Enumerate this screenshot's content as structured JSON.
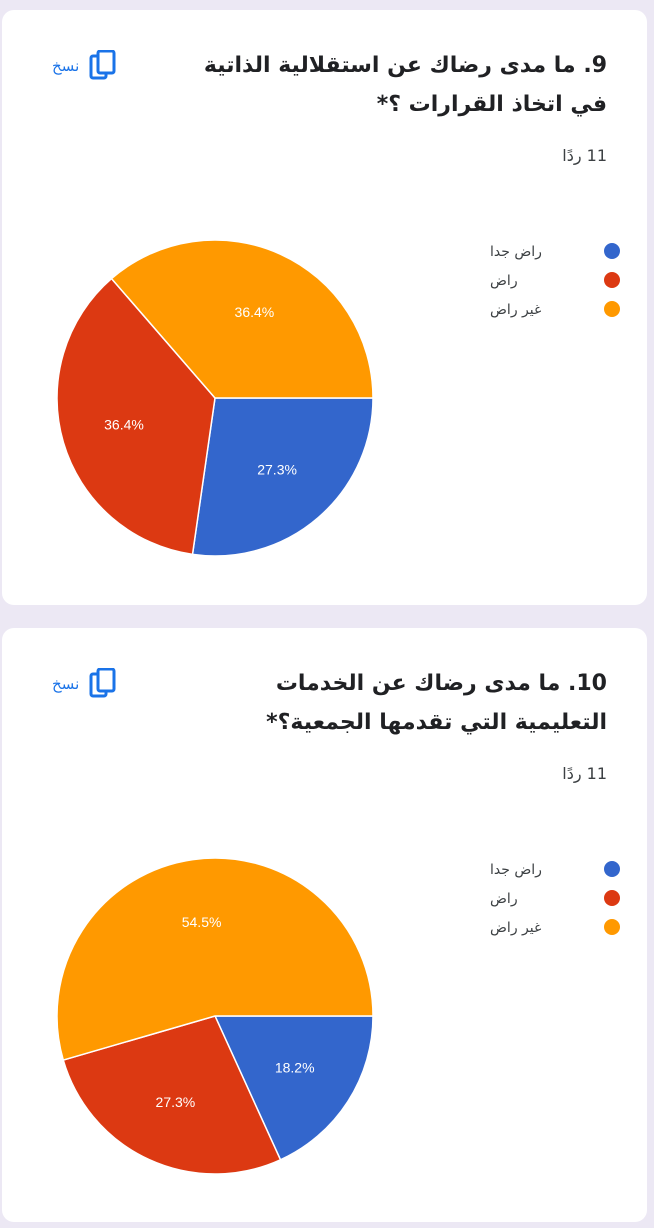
{
  "cards": [
    {
      "title": "9. ما مدى رضاك عن استقلالية الذاتية في اتخاذ القرارات ؟*",
      "response_count": "11 ردًا",
      "copy_label": "نسخ",
      "copy_icon": "copy-icon"
    },
    {
      "title": "10. ما مدى رضاك عن الخدمات التعليمية التي تقدمها الجمعية؟*",
      "response_count": "11 ردًا",
      "copy_label": "نسخ",
      "copy_icon": "copy-icon"
    }
  ],
  "chart_data": [
    {
      "type": "pie",
      "legend_position": "top-right",
      "categories": [
        "راض جدا",
        "راض",
        "غير راض"
      ],
      "colors": [
        "#3366cc",
        "#dc3912",
        "#ff9900"
      ],
      "values": [
        27.3,
        36.4,
        36.4
      ],
      "labels": [
        "27.3%",
        "36.4%",
        "36.4%"
      ]
    },
    {
      "type": "pie",
      "legend_position": "top-right",
      "categories": [
        "راض جدا",
        "راض",
        "غير راض"
      ],
      "colors": [
        "#3366cc",
        "#dc3912",
        "#ff9900"
      ],
      "values": [
        18.2,
        27.3,
        54.5
      ],
      "labels": [
        "18.2%",
        "27.3%",
        "54.5%"
      ]
    }
  ]
}
